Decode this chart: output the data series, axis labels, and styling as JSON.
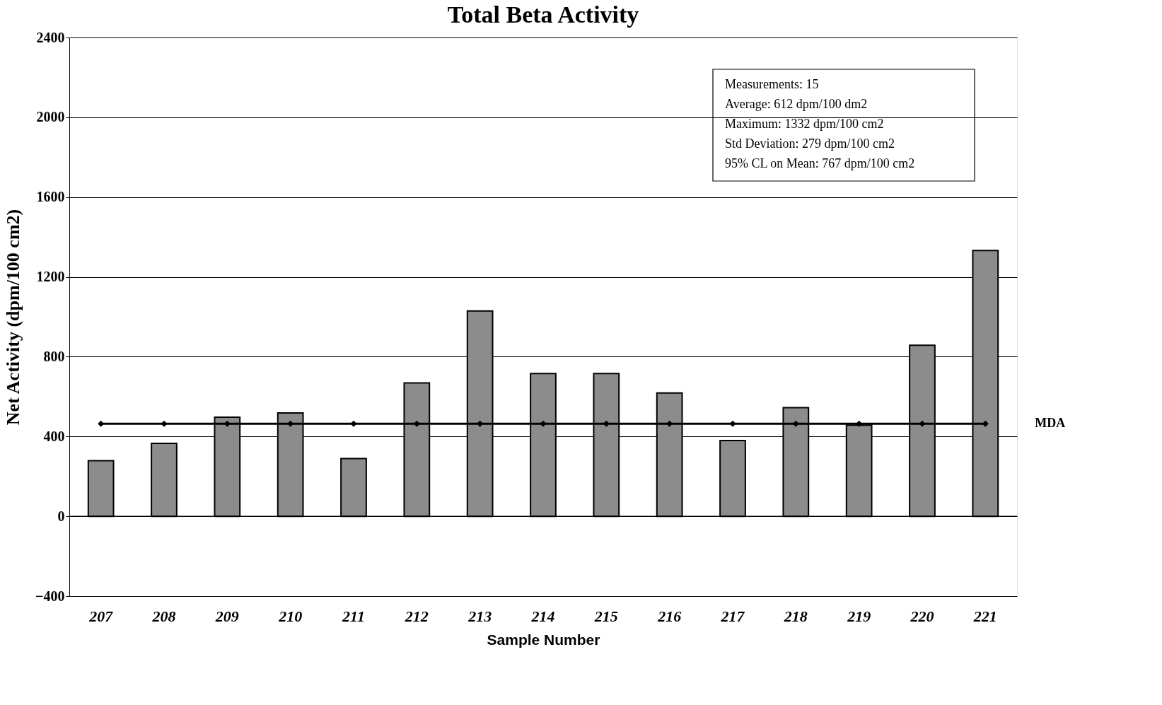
{
  "chart_data": {
    "type": "bar",
    "title": "Total Beta Activity",
    "xlabel": "Sample Number",
    "ylabel": "Net Activity (dpm/100 cm2)",
    "categories": [
      "207",
      "208",
      "209",
      "210",
      "211",
      "212",
      "213",
      "214",
      "215",
      "216",
      "217",
      "218",
      "219",
      "220",
      "221"
    ],
    "series": [
      {
        "color": "#8c8c8c",
        "values": [
          279,
          366,
          497,
          518,
          289,
          669,
          1029,
          716,
          716,
          618,
          380,
          545,
          457,
          857,
          1332
        ]
      },
      {
        "type": "line",
        "name": "MDA",
        "color": "#000000",
        "marker": "diamond",
        "values": [
          464,
          464,
          464,
          464,
          464,
          464,
          464,
          464,
          464,
          464,
          464,
          464,
          464,
          464,
          464
        ]
      }
    ],
    "ylim": [
      -400,
      2400
    ],
    "yticks": [
      -400,
      0,
      400,
      800,
      1200,
      1600,
      2000,
      2400
    ],
    "grid": "y",
    "annotations": [
      "Measurements: 15",
      "Average:  612 dpm/100 dm2",
      "Maximum:  1332 dpm/100 cm2",
      "Std Deviation: 279 dpm/100 cm2",
      "95% CL on Mean:  767 dpm/100 cm2"
    ]
  }
}
